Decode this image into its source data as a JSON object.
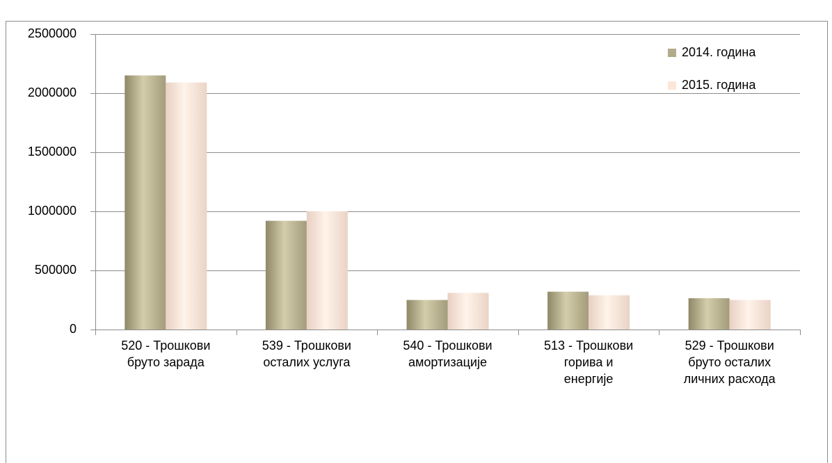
{
  "chart_data": {
    "type": "bar",
    "categories": [
      [
        "520 - Трошкови",
        "бруто зарада"
      ],
      [
        "539 - Трошкови",
        "осталих услуга"
      ],
      [
        "540 - Трошкови",
        "амортизације"
      ],
      [
        "513 - Трошкови",
        "горива и",
        "енергије"
      ],
      [
        "529 - Трошкови",
        "бруто осталих",
        "личних расхода"
      ]
    ],
    "series": [
      {
        "name": "2014. година",
        "color": "#b3ab8b",
        "values": [
          2150000,
          920000,
          250000,
          320000,
          265000
        ]
      },
      {
        "name": "2015. година",
        "color": "#fbe6d9",
        "values": [
          2090000,
          1000000,
          310000,
          290000,
          250000
        ]
      }
    ],
    "ylim": [
      0,
      2500000
    ],
    "yticks": [
      0,
      500000,
      1000000,
      1500000,
      2000000,
      2500000
    ],
    "grid": true,
    "legend": "top-right"
  }
}
